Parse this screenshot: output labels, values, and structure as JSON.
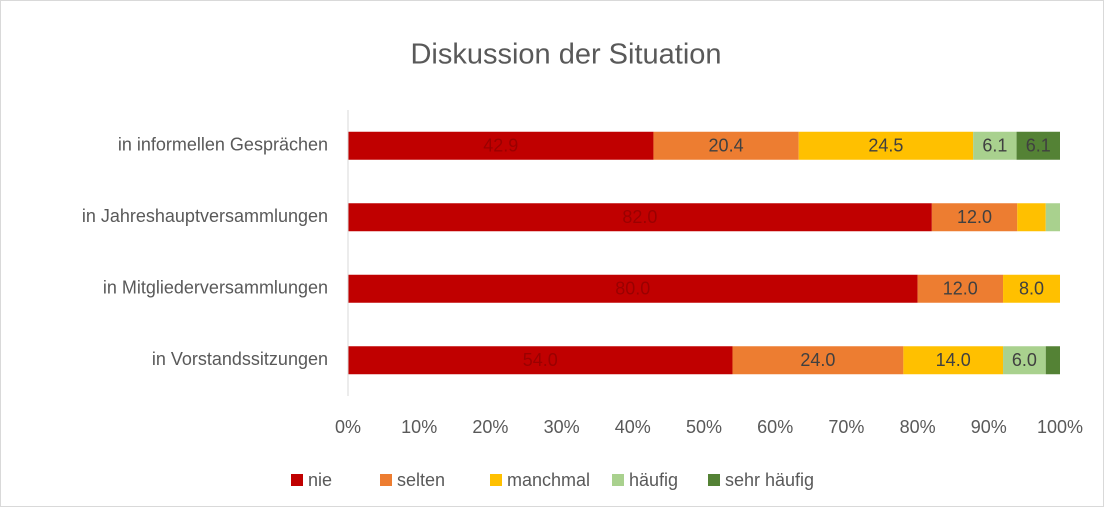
{
  "chart_data": {
    "type": "stacked_bar_horizontal",
    "title": "Diskussion der Situation",
    "categories": [
      "in informellen Gesprächen",
      "in Jahreshauptversammlungen",
      "in Mitgliederversammlungen",
      "in Vorstandssitzungen"
    ],
    "series": [
      {
        "name": "nie",
        "color": "#c00000",
        "values": [
          42.9,
          82,
          80,
          54
        ],
        "value_labels": [
          "42.9",
          "82.0",
          "80.0",
          "54.0"
        ]
      },
      {
        "name": "selten",
        "color": "#ed7d31",
        "values": [
          20.4,
          12,
          12,
          24
        ],
        "value_labels": [
          "20.4",
          "12.0",
          "12.0",
          "24.0"
        ]
      },
      {
        "name": "manchmal",
        "color": "#ffc000",
        "values": [
          24.5,
          4,
          8,
          14
        ],
        "value_labels": [
          "24.5",
          null,
          "8.0",
          "14.0"
        ]
      },
      {
        "name": "häufig",
        "color": "#a9d18e",
        "values": [
          6.1,
          2,
          0,
          6
        ],
        "value_labels": [
          "6.1",
          null,
          null,
          "6.0"
        ]
      },
      {
        "name": "sehr häufig",
        "color": "#548235",
        "values": [
          6.1,
          0,
          0,
          2
        ],
        "value_labels": [
          "6.1",
          null,
          null,
          null
        ]
      }
    ],
    "xlim": [
      0,
      100
    ],
    "xticks": [
      {
        "value": 0,
        "label": "0%"
      },
      {
        "value": 10,
        "label": "10%"
      },
      {
        "value": 20,
        "label": "20%"
      },
      {
        "value": 30,
        "label": "30%"
      },
      {
        "value": 40,
        "label": "40%"
      },
      {
        "value": 50,
        "label": "50%"
      },
      {
        "value": 60,
        "label": "60%"
      },
      {
        "value": 70,
        "label": "70%"
      },
      {
        "value": 80,
        "label": "80%"
      },
      {
        "value": 90,
        "label": "90%"
      },
      {
        "value": 100,
        "label": "100%"
      }
    ],
    "legend": "bottom"
  }
}
